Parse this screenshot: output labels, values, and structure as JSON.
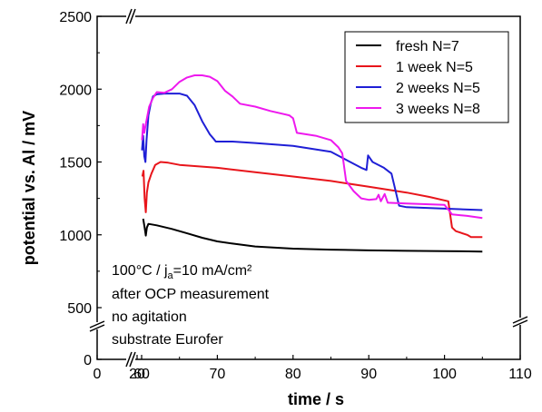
{
  "chart_data": {
    "type": "line",
    "xlabel": "time / s",
    "ylabel": "potential vs. Al / mV",
    "x_ticks": [
      "0",
      "20",
      "60",
      "70",
      "80",
      "90",
      "100",
      "110"
    ],
    "y_ticks": [
      "0",
      "500",
      "1000",
      "1500",
      "2000",
      "2500"
    ],
    "axis_breaks": {
      "x": [
        20,
        60
      ],
      "y": [
        0,
        500
      ]
    },
    "legend_position": "top-right",
    "grid": false,
    "series": [
      {
        "name": "fresh N=7",
        "color": "#000000",
        "points": [
          [
            60.2,
            1110
          ],
          [
            60.4,
            1050
          ],
          [
            60.55,
            995
          ],
          [
            60.7,
            1050
          ],
          [
            60.9,
            1075
          ],
          [
            62,
            1065
          ],
          [
            64,
            1040
          ],
          [
            66,
            1010
          ],
          [
            68,
            980
          ],
          [
            70,
            955
          ],
          [
            72,
            940
          ],
          [
            75,
            920
          ],
          [
            80,
            905
          ],
          [
            85,
            898
          ],
          [
            90,
            893
          ],
          [
            95,
            890
          ],
          [
            100,
            888
          ],
          [
            105,
            885
          ]
        ]
      },
      {
        "name": "1 week N=5",
        "color": "#e8151b",
        "points": [
          [
            60.1,
            1400
          ],
          [
            60.25,
            1440
          ],
          [
            60.4,
            1250
          ],
          [
            60.55,
            1155
          ],
          [
            60.7,
            1290
          ],
          [
            60.9,
            1360
          ],
          [
            61.3,
            1420
          ],
          [
            61.8,
            1480
          ],
          [
            62.5,
            1500
          ],
          [
            63.5,
            1495
          ],
          [
            65,
            1480
          ],
          [
            70,
            1460
          ],
          [
            75,
            1430
          ],
          [
            80,
            1400
          ],
          [
            85,
            1370
          ],
          [
            90,
            1330
          ],
          [
            95,
            1290
          ],
          [
            98,
            1260
          ],
          [
            100.5,
            1230
          ],
          [
            101,
            1050
          ],
          [
            101.5,
            1025
          ],
          [
            103,
            1000
          ],
          [
            103.5,
            985
          ],
          [
            105,
            985
          ]
        ]
      },
      {
        "name": "2 weeks N=5",
        "color": "#1f1fd6",
        "points": [
          [
            60.05,
            1580
          ],
          [
            60.2,
            1680
          ],
          [
            60.35,
            1540
          ],
          [
            60.5,
            1500
          ],
          [
            60.65,
            1650
          ],
          [
            60.9,
            1820
          ],
          [
            61.2,
            1900
          ],
          [
            61.5,
            1950
          ],
          [
            62,
            1965
          ],
          [
            63,
            1970
          ],
          [
            65,
            1970
          ],
          [
            66,
            1955
          ],
          [
            67,
            1890
          ],
          [
            68,
            1780
          ],
          [
            69,
            1690
          ],
          [
            69.5,
            1660
          ],
          [
            69.8,
            1640
          ],
          [
            72,
            1640
          ],
          [
            75,
            1630
          ],
          [
            80,
            1610
          ],
          [
            85,
            1570
          ],
          [
            89,
            1460
          ],
          [
            89.7,
            1445
          ],
          [
            89.9,
            1545
          ],
          [
            90.5,
            1500
          ],
          [
            92,
            1460
          ],
          [
            93,
            1420
          ],
          [
            94,
            1200
          ],
          [
            95,
            1190
          ],
          [
            100,
            1180
          ],
          [
            105,
            1170
          ]
        ]
      },
      {
        "name": "3 weeks N=8",
        "color": "#ee19ee",
        "points": [
          [
            60.05,
            1650
          ],
          [
            60.2,
            1760
          ],
          [
            60.35,
            1700
          ],
          [
            60.55,
            1760
          ],
          [
            61,
            1880
          ],
          [
            61.5,
            1940
          ],
          [
            62,
            1980
          ],
          [
            63,
            1975
          ],
          [
            64,
            2000
          ],
          [
            65,
            2050
          ],
          [
            66,
            2080
          ],
          [
            67,
            2095
          ],
          [
            68,
            2095
          ],
          [
            69,
            2085
          ],
          [
            70,
            2055
          ],
          [
            71,
            1990
          ],
          [
            72,
            1950
          ],
          [
            73,
            1900
          ],
          [
            75,
            1880
          ],
          [
            77,
            1850
          ],
          [
            79.5,
            1820
          ],
          [
            80,
            1800
          ],
          [
            80.5,
            1700
          ],
          [
            83,
            1680
          ],
          [
            85,
            1650
          ],
          [
            86,
            1600
          ],
          [
            86.5,
            1560
          ],
          [
            87,
            1370
          ],
          [
            88,
            1300
          ],
          [
            89,
            1250
          ],
          [
            90,
            1240
          ],
          [
            91,
            1245
          ],
          [
            91.3,
            1275
          ],
          [
            91.6,
            1230
          ],
          [
            92.1,
            1280
          ],
          [
            92.5,
            1220
          ],
          [
            95,
            1215
          ],
          [
            100,
            1205
          ],
          [
            101,
            1140
          ],
          [
            103,
            1130
          ],
          [
            105,
            1115
          ]
        ]
      }
    ],
    "annotation": {
      "line1_main": "100°C / j",
      "line1_sub": "a",
      "line1_rest": "=10 mA/cm²",
      "line2": "after OCP measurement",
      "line3": "no agitation",
      "line4": "substrate Eurofer"
    }
  }
}
